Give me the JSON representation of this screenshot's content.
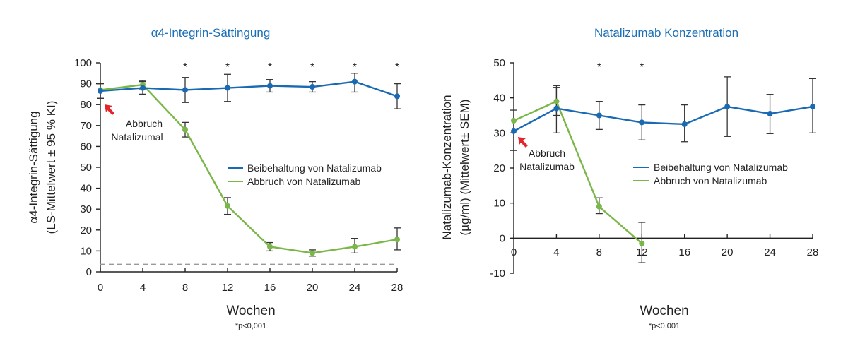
{
  "colors": {
    "title": "#1a6fb5",
    "blue_series": "#1a6ab3",
    "green_series": "#7ab648",
    "arrow": "#e3262a",
    "error_bar": "#333333",
    "reference_line": "#9a9a9a"
  },
  "chart_data": [
    {
      "type": "line",
      "title": "α4-Integrin-Sättingung",
      "xlabel": "Wochen",
      "ylabel_line1": "α4-Integrin-Sättigung",
      "ylabel_line2": "(LS-Mittelwert ± 95 % KI)",
      "footnote": "*p<0,001",
      "x": [
        0,
        4,
        8,
        12,
        16,
        20,
        24,
        28
      ],
      "x_ticks": [
        "0",
        "4",
        "8",
        "12",
        "16",
        "20",
        "24",
        "28"
      ],
      "xlim": [
        0,
        28
      ],
      "ylim": [
        0,
        100
      ],
      "y_ticks": [
        "0",
        "10",
        "20",
        "30",
        "40",
        "50",
        "60",
        "70",
        "80",
        "90",
        "100"
      ],
      "y_tick_values": [
        0,
        10,
        20,
        30,
        40,
        50,
        60,
        70,
        80,
        90,
        100
      ],
      "grid": false,
      "reference_line": 3.5,
      "significance_marker": "*",
      "significance_weeks": [
        8,
        12,
        16,
        20,
        24,
        28
      ],
      "annotation": {
        "line1": "Abbruch",
        "line2": "Natalizumal"
      },
      "legend": {
        "placement": "center-right",
        "entries": [
          "Beibehaltung von Natalizumab",
          "Abbruch von Natalizumab"
        ]
      },
      "series": [
        {
          "name": "Beibehaltung von Natalizumab",
          "color_key": "blue_series",
          "x": [
            0,
            4,
            8,
            12,
            16,
            20,
            24,
            28
          ],
          "values": [
            86.5,
            88,
            87,
            88,
            89,
            88.5,
            91,
            84
          ],
          "err_low": [
            83,
            85,
            81,
            81.5,
            86,
            86,
            86,
            78
          ],
          "err_high": [
            90,
            91,
            93,
            94.5,
            92,
            91,
            95,
            90
          ]
        },
        {
          "name": "Abbruch von Natalizumab",
          "color_key": "green_series",
          "x": [
            0,
            4,
            8,
            12,
            16,
            20,
            24,
            28
          ],
          "values": [
            87,
            89.5,
            68,
            31.5,
            12,
            9,
            12,
            15.5
          ],
          "err_low": [
            83,
            87.5,
            64.5,
            27.5,
            10,
            7.5,
            9,
            10.5
          ],
          "err_high": [
            90,
            91.5,
            71.5,
            35.5,
            14,
            10.5,
            16,
            21
          ]
        }
      ]
    },
    {
      "type": "line",
      "title": "Natalizumab Konzentration",
      "xlabel": "Wochen",
      "ylabel_line1": "Natalizumab-Konzentration",
      "ylabel_line2": "(µg/ml) (Mittelwert± SEM)",
      "footnote": "*p<0,001",
      "x": [
        0,
        4,
        8,
        12,
        16,
        20,
        24,
        28
      ],
      "x_ticks": [
        "0",
        "4",
        "8",
        "12",
        "16",
        "20",
        "24",
        "28"
      ],
      "xlim": [
        0,
        28
      ],
      "ylim": [
        -10,
        50
      ],
      "y_ticks": [
        "-10",
        "0",
        "10",
        "20",
        "30",
        "40",
        "50"
      ],
      "y_tick_values": [
        -10,
        0,
        10,
        20,
        30,
        40,
        50
      ],
      "grid": false,
      "significance_marker": "*",
      "significance_weeks": [
        8,
        12
      ],
      "annotation": {
        "line1": "Abbruch",
        "line2": "Natalizumab"
      },
      "legend": {
        "placement": "center-right",
        "entries": [
          "Beibehaltung von Natalizumab",
          "Abbruch von Natalizumab"
        ]
      },
      "series": [
        {
          "name": "Beibehaltung von Natalizumab",
          "color_key": "blue_series",
          "x": [
            0,
            4,
            8,
            12,
            16,
            20,
            24,
            28
          ],
          "values": [
            30.5,
            37,
            35,
            33,
            32.5,
            37.5,
            35.5,
            37.5
          ],
          "err_low": [
            25,
            30,
            31,
            28,
            27.5,
            29,
            29.8,
            30
          ],
          "err_high": [
            36.5,
            43,
            39,
            38,
            38,
            46,
            41,
            45.5
          ]
        },
        {
          "name": "Abbruch von Natalizumab",
          "color_key": "green_series",
          "x": [
            0,
            4,
            8,
            12
          ],
          "values": [
            33.5,
            39,
            9,
            -1.5
          ],
          "err_low": [
            33.5,
            35,
            7,
            -7
          ],
          "err_high": [
            33.5,
            43.5,
            11.5,
            4.5
          ]
        }
      ]
    }
  ]
}
